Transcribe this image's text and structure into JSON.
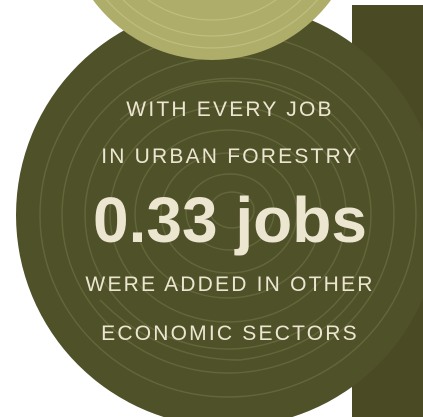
{
  "colors": {
    "page_background": "#ffffff",
    "dark_circle": "#4f5129",
    "dark_panel": "#4a4b25",
    "light_circle": "#aeae6a",
    "ring_lines": "#6b6c41",
    "text": "#ece6d1"
  },
  "infographic": {
    "line1": "WITH EVERY JOB",
    "line2": "IN URBAN FORESTRY",
    "stat": "0.33 jobs",
    "line3": "WERE ADDED IN OTHER",
    "line4": "ECONOMIC SECTORS"
  }
}
